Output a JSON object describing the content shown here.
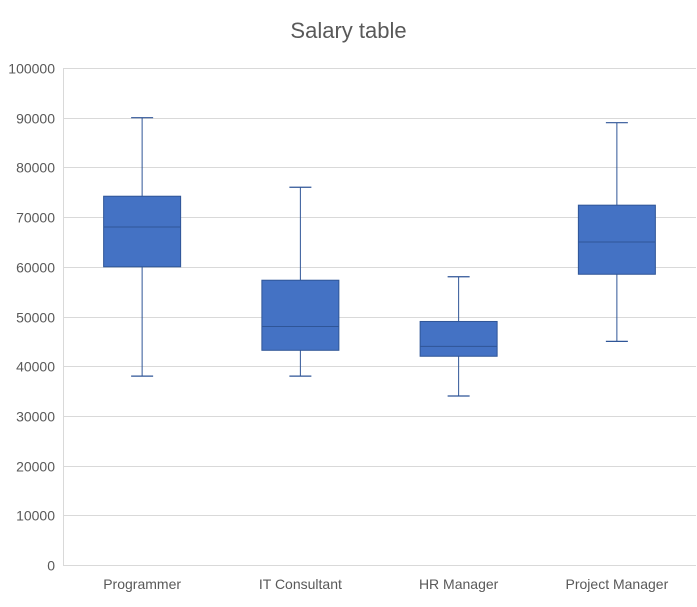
{
  "chart_data": {
    "type": "box",
    "title": "Salary table",
    "xlabel": "",
    "ylabel": "",
    "ylim": [
      0,
      100000
    ],
    "yticks": [
      0,
      10000,
      20000,
      30000,
      40000,
      50000,
      60000,
      70000,
      80000,
      90000,
      100000
    ],
    "grid": true,
    "categories": [
      "Programmer",
      "IT Consultant",
      "HR Manager",
      "Project Manager"
    ],
    "boxes": [
      {
        "category": "Programmer",
        "min": 38000,
        "q1": 60000,
        "median": 68000,
        "q3": 74200,
        "max": 90000
      },
      {
        "category": "IT Consultant",
        "min": 38000,
        "q1": 43200,
        "median": 48000,
        "q3": 57300,
        "max": 76000
      },
      {
        "category": "HR Manager",
        "min": 34000,
        "q1": 42000,
        "median": 44000,
        "q3": 49000,
        "max": 58000
      },
      {
        "category": "Project Manager",
        "min": 45000,
        "q1": 58500,
        "median": 65000,
        "q3": 72400,
        "max": 89000
      }
    ],
    "colors": {
      "box_fill": "#4472C4",
      "box_stroke": "#2F5597",
      "whisker": "#2F5597",
      "grid": "#D9D9D9",
      "text": "#595959"
    }
  }
}
